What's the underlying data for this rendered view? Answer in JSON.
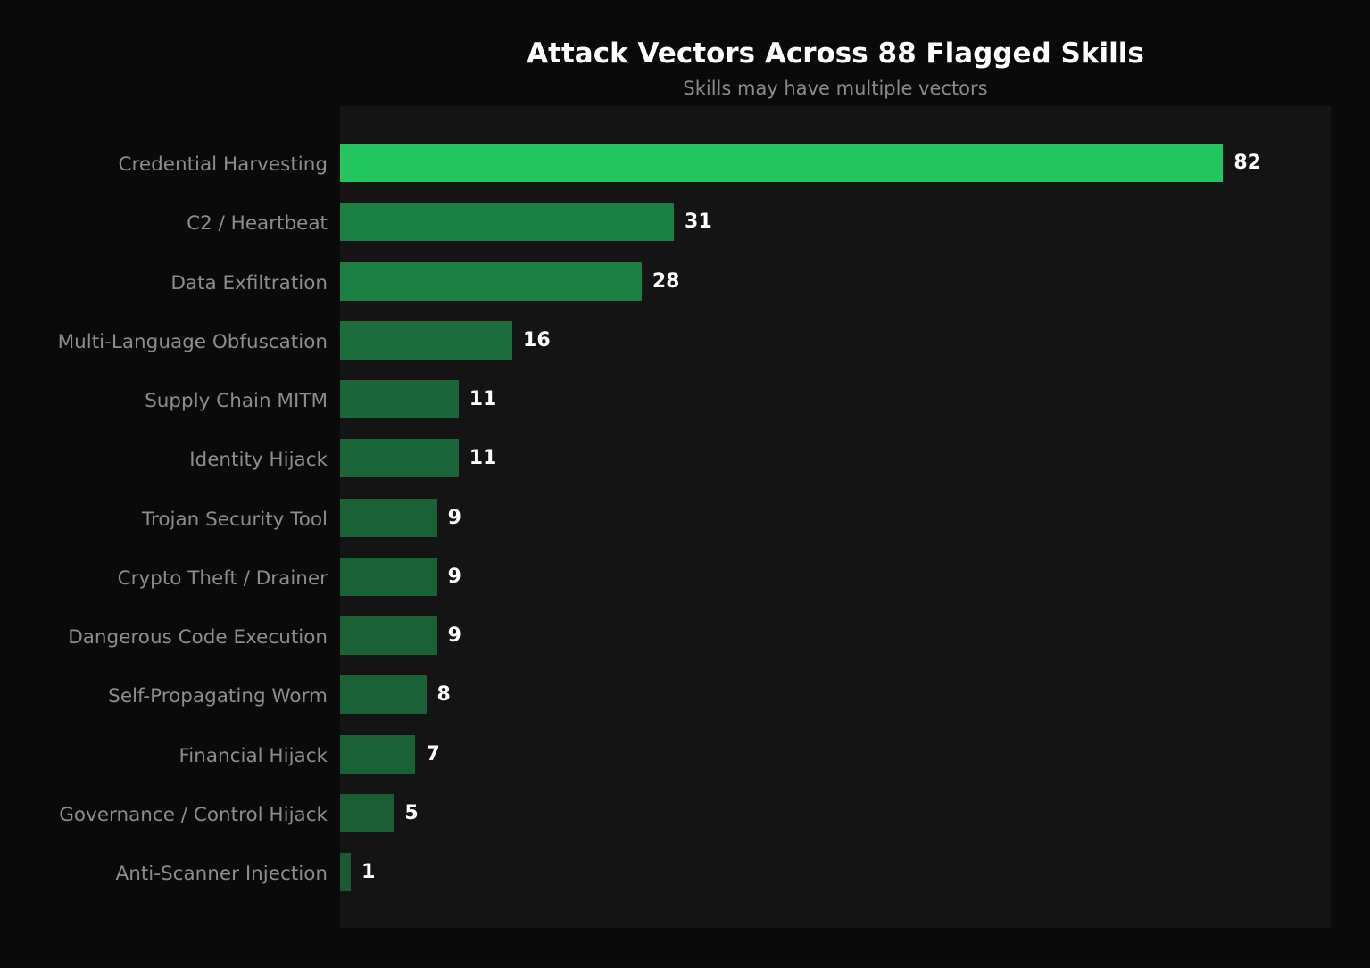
{
  "chart_data": {
    "type": "bar",
    "orientation": "horizontal",
    "title": "Attack Vectors Across 88 Flagged Skills",
    "subtitle": "Skills may have multiple vectors",
    "xlabel": "",
    "ylabel": "",
    "grid": false,
    "legend": null,
    "xlim": [
      0,
      92
    ],
    "categories": [
      "Credential Harvesting",
      "C2 / Heartbeat",
      "Data Exfiltration",
      "Multi-Language Obfuscation",
      "Supply Chain MITM",
      "Identity Hijack",
      "Trojan Security Tool",
      "Crypto Theft / Drainer",
      "Dangerous Code Execution",
      "Self-Propagating Worm",
      "Financial Hijack",
      "Governance / Control Hijack",
      "Anti-Scanner Injection"
    ],
    "values": [
      82,
      31,
      28,
      16,
      11,
      11,
      9,
      9,
      9,
      8,
      7,
      5,
      1
    ],
    "bar_colors": [
      "#22c55e",
      "#1b7f42",
      "#1b7f42",
      "#1b6e3b",
      "#1b6638",
      "#1b6638",
      "#1b6136",
      "#1b6136",
      "#1b6136",
      "#1b6136",
      "#1b6136",
      "#1b5e34",
      "#1b5a33"
    ],
    "data_labels": [
      "82",
      "31",
      "28",
      "16",
      "11",
      "11",
      "9",
      "9",
      "9",
      "8",
      "7",
      "5",
      "1"
    ]
  },
  "colors": {
    "page_background": "#0a0a0a",
    "plot_background": "#141414",
    "highlight_bar": "#22c55e",
    "title": "#ffffff",
    "subtitle": "#8a8a8a",
    "tick_label": "#8c8c8c",
    "value_label": "#ffffff"
  }
}
